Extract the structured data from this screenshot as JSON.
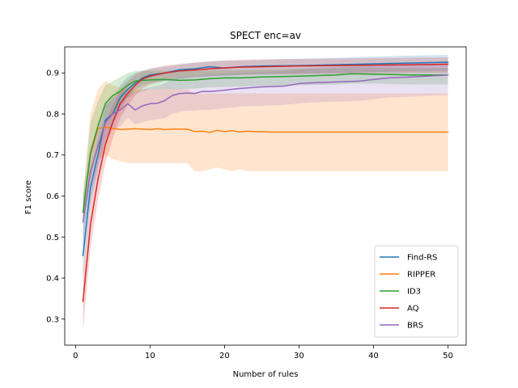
{
  "chart_data": {
    "type": "line",
    "title": "SPECT enc=av",
    "xlabel": "Number of rules",
    "ylabel": "F1 score",
    "xlim": [
      -1.45,
      52.45
    ],
    "ylim": [
      0.2365,
      0.9635
    ],
    "xticks": [
      0,
      10,
      20,
      30,
      40,
      50
    ],
    "yticks": [
      0.3,
      0.4,
      0.5,
      0.6,
      0.7,
      0.8,
      0.9
    ],
    "xtick_labels": [
      "0",
      "10",
      "20",
      "30",
      "40",
      "50"
    ],
    "ytick_labels": [
      "0.3",
      "0.4",
      "0.5",
      "0.6",
      "0.7",
      "0.8",
      "0.9"
    ],
    "grid": false,
    "legend_position": "lower-right",
    "series": [
      {
        "name": "Find-RS",
        "color": "#1f77b4",
        "x": [
          1,
          2,
          3,
          4,
          5,
          6,
          7,
          8,
          9,
          10,
          12,
          14,
          16,
          18,
          20,
          22,
          25,
          30,
          35,
          40,
          45,
          50
        ],
        "y": [
          0.455,
          0.62,
          0.7,
          0.785,
          0.8,
          0.84,
          0.86,
          0.875,
          0.888,
          0.895,
          0.9,
          0.908,
          0.91,
          0.915,
          0.912,
          0.915,
          0.917,
          0.918,
          0.92,
          0.922,
          0.924,
          0.926
        ],
        "lower": [
          0.4,
          0.58,
          0.66,
          0.74,
          0.77,
          0.81,
          0.84,
          0.86,
          0.87,
          0.875,
          0.88,
          0.885,
          0.89,
          0.892,
          0.893,
          0.895,
          0.897,
          0.898,
          0.9,
          0.902,
          0.904,
          0.905
        ],
        "upper": [
          0.51,
          0.66,
          0.74,
          0.82,
          0.84,
          0.87,
          0.89,
          0.9,
          0.905,
          0.91,
          0.915,
          0.92,
          0.925,
          0.928,
          0.93,
          0.93,
          0.932,
          0.935,
          0.937,
          0.94,
          0.942,
          0.944
        ]
      },
      {
        "name": "RIPPER",
        "color": "#ff7f0e",
        "x": [
          1,
          2,
          3,
          4,
          5,
          6,
          7,
          8,
          9,
          10,
          11,
          12,
          13,
          14,
          15,
          16,
          17,
          18,
          19,
          20,
          21,
          22,
          23,
          24,
          25,
          26,
          28,
          30,
          35,
          40,
          45,
          50
        ],
        "y": [
          0.56,
          0.7,
          0.765,
          0.768,
          0.765,
          0.762,
          0.763,
          0.764,
          0.763,
          0.762,
          0.764,
          0.762,
          0.763,
          0.763,
          0.763,
          0.757,
          0.758,
          0.755,
          0.76,
          0.757,
          0.759,
          0.756,
          0.758,
          0.757,
          0.757,
          0.756,
          0.756,
          0.756,
          0.756,
          0.756,
          0.756,
          0.756
        ],
        "lower": [
          0.53,
          0.64,
          0.69,
          0.7,
          0.69,
          0.685,
          0.68,
          0.68,
          0.68,
          0.68,
          0.68,
          0.68,
          0.68,
          0.68,
          0.68,
          0.66,
          0.66,
          0.665,
          0.67,
          0.665,
          0.66,
          0.665,
          0.66,
          0.66,
          0.66,
          0.66,
          0.66,
          0.66,
          0.66,
          0.66,
          0.66,
          0.66
        ],
        "upper": [
          0.6,
          0.8,
          0.86,
          0.88,
          0.87,
          0.865,
          0.86,
          0.86,
          0.86,
          0.86,
          0.86,
          0.86,
          0.86,
          0.86,
          0.86,
          0.85,
          0.85,
          0.85,
          0.85,
          0.85,
          0.85,
          0.85,
          0.85,
          0.85,
          0.85,
          0.85,
          0.85,
          0.85,
          0.85,
          0.85,
          0.85,
          0.85
        ]
      },
      {
        "name": "ID3",
        "color": "#2ca02c",
        "x": [
          1,
          2,
          3,
          4,
          5,
          6,
          7,
          8,
          9,
          10,
          12,
          14,
          16,
          18,
          20,
          22,
          25,
          30,
          35,
          37,
          40,
          45,
          50
        ],
        "y": [
          0.56,
          0.705,
          0.77,
          0.825,
          0.845,
          0.855,
          0.87,
          0.88,
          0.882,
          0.883,
          0.884,
          0.882,
          0.883,
          0.886,
          0.888,
          0.888,
          0.89,
          0.892,
          0.895,
          0.898,
          0.897,
          0.895,
          0.895
        ],
        "lower": [
          0.5,
          0.64,
          0.72,
          0.77,
          0.8,
          0.82,
          0.84,
          0.85,
          0.855,
          0.86,
          0.86,
          0.86,
          0.862,
          0.865,
          0.866,
          0.867,
          0.868,
          0.87,
          0.872,
          0.874,
          0.874,
          0.872,
          0.872
        ],
        "upper": [
          0.6,
          0.78,
          0.83,
          0.87,
          0.88,
          0.89,
          0.9,
          0.905,
          0.905,
          0.905,
          0.905,
          0.905,
          0.905,
          0.906,
          0.907,
          0.907,
          0.908,
          0.91,
          0.912,
          0.914,
          0.913,
          0.912,
          0.912
        ]
      },
      {
        "name": "AQ",
        "color": "#d62728",
        "x": [
          1,
          2,
          3,
          4,
          5,
          6,
          7,
          8,
          9,
          10,
          12,
          14,
          16,
          18,
          20,
          22,
          25,
          30,
          35,
          40,
          45,
          50
        ],
        "y": [
          0.343,
          0.53,
          0.64,
          0.725,
          0.78,
          0.825,
          0.85,
          0.87,
          0.885,
          0.892,
          0.9,
          0.905,
          0.907,
          0.91,
          0.912,
          0.914,
          0.915,
          0.917,
          0.918,
          0.919,
          0.92,
          0.921
        ],
        "lower": [
          0.27,
          0.47,
          0.59,
          0.68,
          0.74,
          0.79,
          0.82,
          0.845,
          0.862,
          0.872,
          0.882,
          0.888,
          0.89,
          0.892,
          0.894,
          0.895,
          0.896,
          0.897,
          0.898,
          0.899,
          0.9,
          0.9
        ],
        "upper": [
          0.41,
          0.6,
          0.7,
          0.78,
          0.82,
          0.86,
          0.88,
          0.895,
          0.905,
          0.91,
          0.918,
          0.922,
          0.925,
          0.928,
          0.93,
          0.932,
          0.933,
          0.934,
          0.935,
          0.936,
          0.937,
          0.938
        ]
      },
      {
        "name": "BRS",
        "color": "#9467bd",
        "x": [
          1,
          2,
          3,
          4,
          5,
          6,
          7,
          8,
          9,
          10,
          11,
          12,
          13,
          14,
          15,
          16,
          17,
          18,
          19,
          20,
          22,
          25,
          28,
          30,
          32,
          35,
          38,
          40,
          42,
          45,
          48,
          50
        ],
        "y": [
          0.537,
          0.66,
          0.72,
          0.78,
          0.8,
          0.81,
          0.825,
          0.81,
          0.82,
          0.825,
          0.826,
          0.833,
          0.845,
          0.85,
          0.851,
          0.85,
          0.855,
          0.855,
          0.856,
          0.858,
          0.862,
          0.866,
          0.868,
          0.874,
          0.876,
          0.878,
          0.88,
          0.884,
          0.888,
          0.89,
          0.893,
          0.895
        ],
        "lower": [
          0.47,
          0.6,
          0.67,
          0.73,
          0.76,
          0.77,
          0.79,
          0.775,
          0.78,
          0.785,
          0.787,
          0.79,
          0.8,
          0.805,
          0.808,
          0.808,
          0.81,
          0.81,
          0.812,
          0.814,
          0.818,
          0.82,
          0.822,
          0.826,
          0.828,
          0.83,
          0.832,
          0.836,
          0.84,
          0.842,
          0.845,
          0.846
        ],
        "upper": [
          0.6,
          0.72,
          0.77,
          0.82,
          0.84,
          0.85,
          0.86,
          0.85,
          0.86,
          0.865,
          0.868,
          0.875,
          0.885,
          0.89,
          0.892,
          0.892,
          0.895,
          0.896,
          0.897,
          0.898,
          0.9,
          0.903,
          0.905,
          0.91,
          0.912,
          0.915,
          0.917,
          0.92,
          0.922,
          0.924,
          0.926,
          0.928
        ]
      }
    ]
  }
}
